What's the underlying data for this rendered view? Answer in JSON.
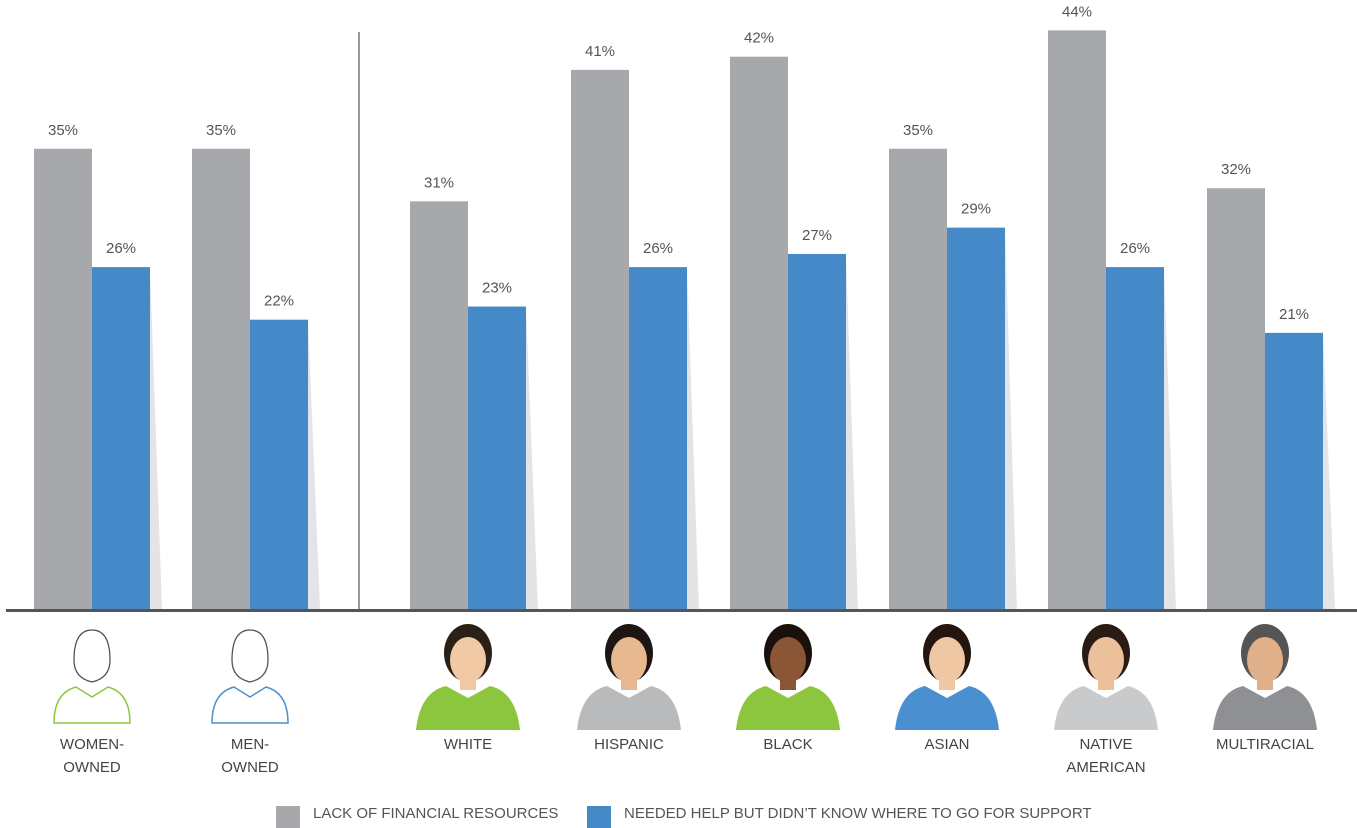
{
  "chart_data": {
    "type": "bar",
    "categories": [
      "WOMEN-\nOWNED",
      "MEN-\nOWNED",
      "WHITE",
      "HISPANIC",
      "BLACK",
      "ASIAN",
      "NATIVE\nAMERICAN",
      "MULTIRACIAL"
    ],
    "series": [
      {
        "name": "LACK OF FINANCIAL RESOURCES",
        "color": "#a7a8ab",
        "values": [
          35,
          35,
          31,
          41,
          42,
          35,
          44,
          32
        ],
        "value_labels": [
          "35%",
          "35%",
          "31%",
          "41%",
          "42%",
          "35%",
          "44%",
          "32%"
        ]
      },
      {
        "name": "NEEDED HELP BUT DIDN’T KNOW WHERE TO GO FOR SUPPORT",
        "color": "#4689c8",
        "values": [
          26,
          22,
          23,
          26,
          27,
          29,
          26,
          21
        ],
        "value_labels": [
          "26%",
          "22%",
          "23%",
          "26%",
          "27%",
          "29%",
          "26%",
          "21%"
        ]
      }
    ]
  }
}
